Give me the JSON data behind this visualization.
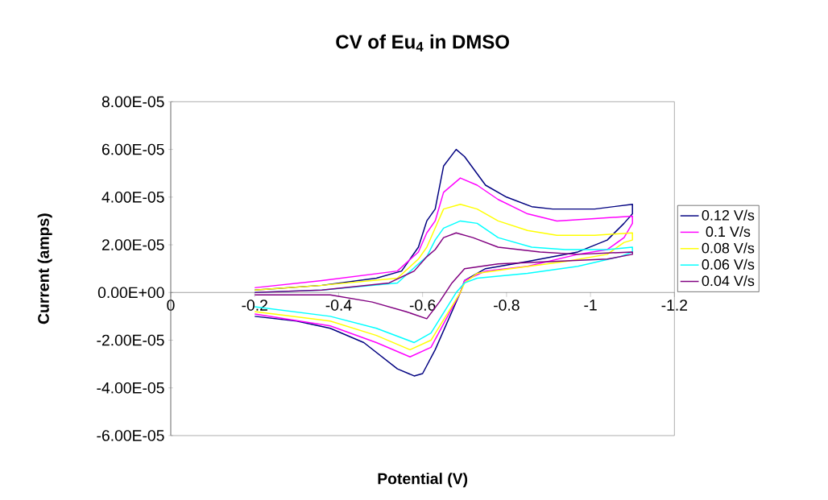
{
  "chart_data": {
    "type": "line",
    "title": "CV of Eu$_{4}$ in DMSO",
    "xlabel": "Potential (V)",
    "ylabel": "Current (amps)",
    "xlim": [
      0,
      -1.2
    ],
    "xticks": [
      0,
      -0.2,
      -0.4,
      -0.6,
      -0.8,
      -1,
      -1.2
    ],
    "ylim": [
      -6e-05,
      8e-05
    ],
    "yticks": [
      {
        "value": -6e-05,
        "label": "-6.00E-05"
      },
      {
        "value": -4e-05,
        "label": "-4.00E-05"
      },
      {
        "value": -2e-05,
        "label": "-2.00E-05"
      },
      {
        "value": 0,
        "label": "0.00E+00"
      },
      {
        "value": 2e-05,
        "label": "2.00E-05"
      },
      {
        "value": 4e-05,
        "label": "4.00E-05"
      },
      {
        "value": 6e-05,
        "label": "6.00E-05"
      },
      {
        "value": 8e-05,
        "label": "8.00E-05"
      }
    ],
    "legend": "right",
    "series": [
      {
        "name": "0.12 V/s",
        "color": "#000080",
        "x": [
          -0.2,
          -0.36,
          -0.49,
          -0.55,
          -0.59,
          -0.61,
          -0.63,
          -0.65,
          -0.68,
          -0.7,
          -0.75,
          -0.8,
          -0.86,
          -0.91,
          -1.01,
          -1.1,
          -1.1,
          -1.08,
          -1.04,
          -0.97,
          -0.85,
          -0.75,
          -0.7,
          -0.69,
          -0.63,
          -0.6,
          -0.58,
          -0.54,
          -0.46,
          -0.38,
          -0.3,
          -0.2
        ],
        "values": [
          1e-06,
          3e-06,
          6e-06,
          9e-06,
          1.9e-05,
          3e-05,
          3.5e-05,
          5.3e-05,
          6e-05,
          5.7e-05,
          4.5e-05,
          4e-05,
          3.6e-05,
          3.5e-05,
          3.5e-05,
          3.7e-05,
          3.3e-05,
          2.9e-05,
          2.2e-05,
          1.7e-05,
          1.3e-05,
          1e-05,
          5e-06,
          0,
          -2.4e-05,
          -3.4e-05,
          -3.5e-05,
          -3.2e-05,
          -2.1e-05,
          -1.5e-05,
          -1.2e-05,
          -1e-05
        ]
      },
      {
        "name": "0.1 V/s",
        "color": "#ff00ff",
        "x": [
          -0.2,
          -0.36,
          -0.54,
          -0.59,
          -0.61,
          -0.63,
          -0.65,
          -0.69,
          -0.73,
          -0.78,
          -0.85,
          -0.92,
          -1.01,
          -1.1,
          -1.1,
          -1.08,
          -1.04,
          -0.97,
          -0.85,
          -0.75,
          -0.7,
          -0.69,
          -0.62,
          -0.57,
          -0.49,
          -0.38,
          -0.2
        ],
        "values": [
          2e-06,
          5e-06,
          9e-06,
          1.7e-05,
          2.5e-05,
          3e-05,
          4.2e-05,
          4.8e-05,
          4.5e-05,
          3.9e-05,
          3.3e-05,
          3e-05,
          3.1e-05,
          3.2e-05,
          2.9e-05,
          2.3e-05,
          1.8e-05,
          1.6e-05,
          1.1e-05,
          9e-06,
          5e-06,
          0,
          -2.3e-05,
          -2.7e-05,
          -2.1e-05,
          -1.4e-05,
          -9e-06
        ]
      },
      {
        "name": "0.08 V/s",
        "color": "#ffff00",
        "x": [
          -0.2,
          -0.36,
          -0.54,
          -0.59,
          -0.61,
          -0.63,
          -0.65,
          -0.69,
          -0.73,
          -0.78,
          -0.85,
          -0.92,
          -1.01,
          -1.1,
          -1.1,
          -1.08,
          -1.04,
          -0.94,
          -0.81,
          -0.73,
          -0.7,
          -0.69,
          -0.62,
          -0.57,
          -0.49,
          -0.38,
          -0.2
        ],
        "values": [
          1e-06,
          3e-06,
          6e-06,
          1.4e-05,
          1.9e-05,
          2.7e-05,
          3.5e-05,
          3.7e-05,
          3.5e-05,
          3e-05,
          2.6e-05,
          2.4e-05,
          2.4e-05,
          2.5e-05,
          2.2e-05,
          2.1e-05,
          1.6e-05,
          1.3e-05,
          1e-05,
          8e-06,
          4e-06,
          0,
          -2e-05,
          -2.4e-05,
          -1.8e-05,
          -1.2e-05,
          -8e-06
        ]
      },
      {
        "name": "0.06 V/s",
        "color": "#00ffff",
        "x": [
          -0.2,
          -0.36,
          -0.54,
          -0.59,
          -0.61,
          -0.63,
          -0.65,
          -0.69,
          -0.73,
          -0.78,
          -0.86,
          -0.94,
          -1.04,
          -1.1,
          -1.1,
          -1.07,
          -0.97,
          -0.85,
          -0.73,
          -0.7,
          -0.68,
          -0.62,
          -0.58,
          -0.49,
          -0.38,
          -0.2
        ],
        "values": [
          0,
          1e-06,
          4e-06,
          1.2e-05,
          1.5e-05,
          2.2e-05,
          2.7e-05,
          3e-05,
          2.9e-05,
          2.3e-05,
          1.9e-05,
          1.8e-05,
          1.8e-05,
          1.9e-05,
          1.7e-05,
          1.5e-05,
          1.1e-05,
          8e-06,
          6e-06,
          4e-06,
          0,
          -1.7e-05,
          -2.1e-05,
          -1.5e-05,
          -1e-05,
          -6e-06
        ]
      },
      {
        "name": "0.04 V/s",
        "color": "#800080",
        "x": [
          -0.2,
          -0.36,
          -0.52,
          -0.58,
          -0.61,
          -0.63,
          -0.65,
          -0.68,
          -0.72,
          -0.78,
          -0.88,
          -0.97,
          -1.1,
          -1.1,
          -1.04,
          -0.91,
          -0.78,
          -0.7,
          -0.67,
          -0.64,
          -0.61,
          -0.56,
          -0.48,
          -0.38,
          -0.2
        ],
        "values": [
          0,
          1e-06,
          4e-06,
          9e-06,
          1.5e-05,
          1.8e-05,
          2.3e-05,
          2.5e-05,
          2.3e-05,
          1.9e-05,
          1.7e-05,
          1.6e-05,
          1.7e-05,
          1.6e-05,
          1.4e-05,
          1.3e-05,
          1.2e-05,
          1e-05,
          4e-06,
          -4e-06,
          -1.1e-05,
          -8e-06,
          -4e-06,
          -1e-06,
          -1e-06
        ]
      }
    ]
  }
}
